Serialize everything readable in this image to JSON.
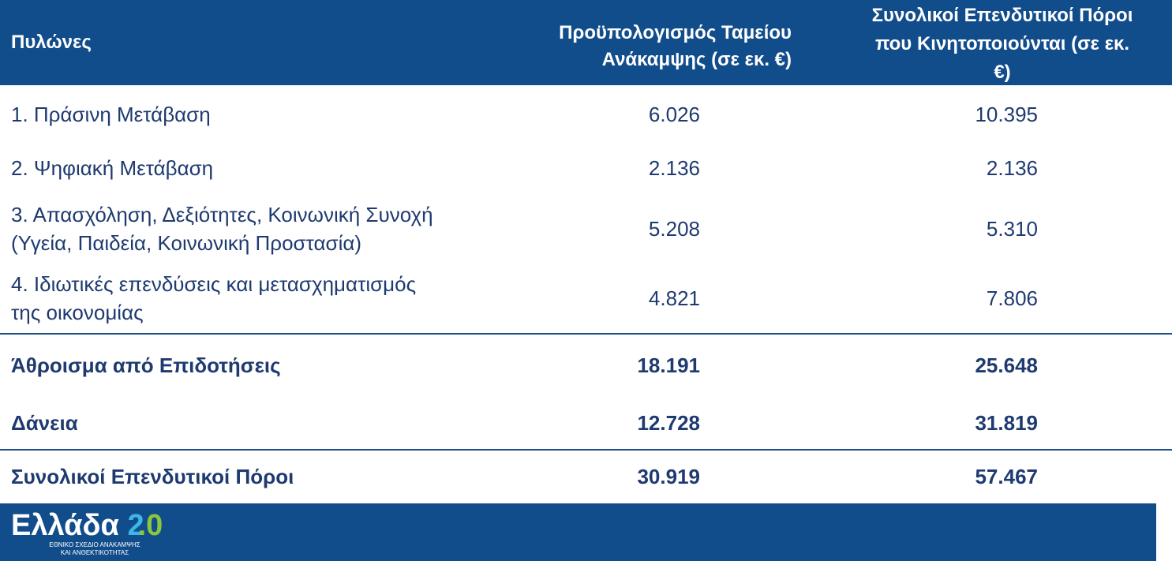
{
  "table": {
    "header": [
      [
        "Πυλώνες"
      ],
      [
        "Προϋπολογισμός Ταμείου",
        "Ανάκαμψης (σε εκ. €)"
      ],
      [
        "Συνολικοί Επενδυτικοί Πόροι",
        "που Κινητοποιούνται (σε εκ.",
        "€)"
      ]
    ],
    "rows": [
      [
        [
          "1. Πράσινη Μετάβαση"
        ],
        "6.026",
        "10.395"
      ],
      [
        [
          "2. Ψηφιακή Μετάβαση"
        ],
        "2.136",
        "2.136"
      ],
      [
        [
          "3. Απασχόληση, Δεξιότητες, Κοινωνική Συνοχή",
          "(Υγεία, Παιδεία, Κοινωνική Προστασία)"
        ],
        "5.208",
        "5.310"
      ],
      [
        [
          "4. Ιδιωτικές επενδύσεις και μετασχηματισμός",
          "της οικονομίας"
        ],
        "4.821",
        "7.806"
      ],
      [
        [
          "Άθροισμα από Επιδοτήσεις"
        ],
        "18.191",
        "25.648"
      ],
      [
        [
          "Δάνεια"
        ],
        "12.728",
        "31.819"
      ],
      [
        [
          "Συνολικοί Επενδυτικοί Πόροι"
        ],
        "30.919",
        "57.467"
      ]
    ]
  },
  "logo": {
    "name": "Ελλάδα",
    "version": [
      "2",
      ".0"
    ],
    "tagline": [
      "ΕΘΝΙΚΟ ΣΧΕΔΙΟ ΑΝΑΚΑΜΨΗΣ",
      "ΚΑΙ ΑΝΘΕΚΤΙΚΟΤΗΤΑΣ"
    ]
  }
}
